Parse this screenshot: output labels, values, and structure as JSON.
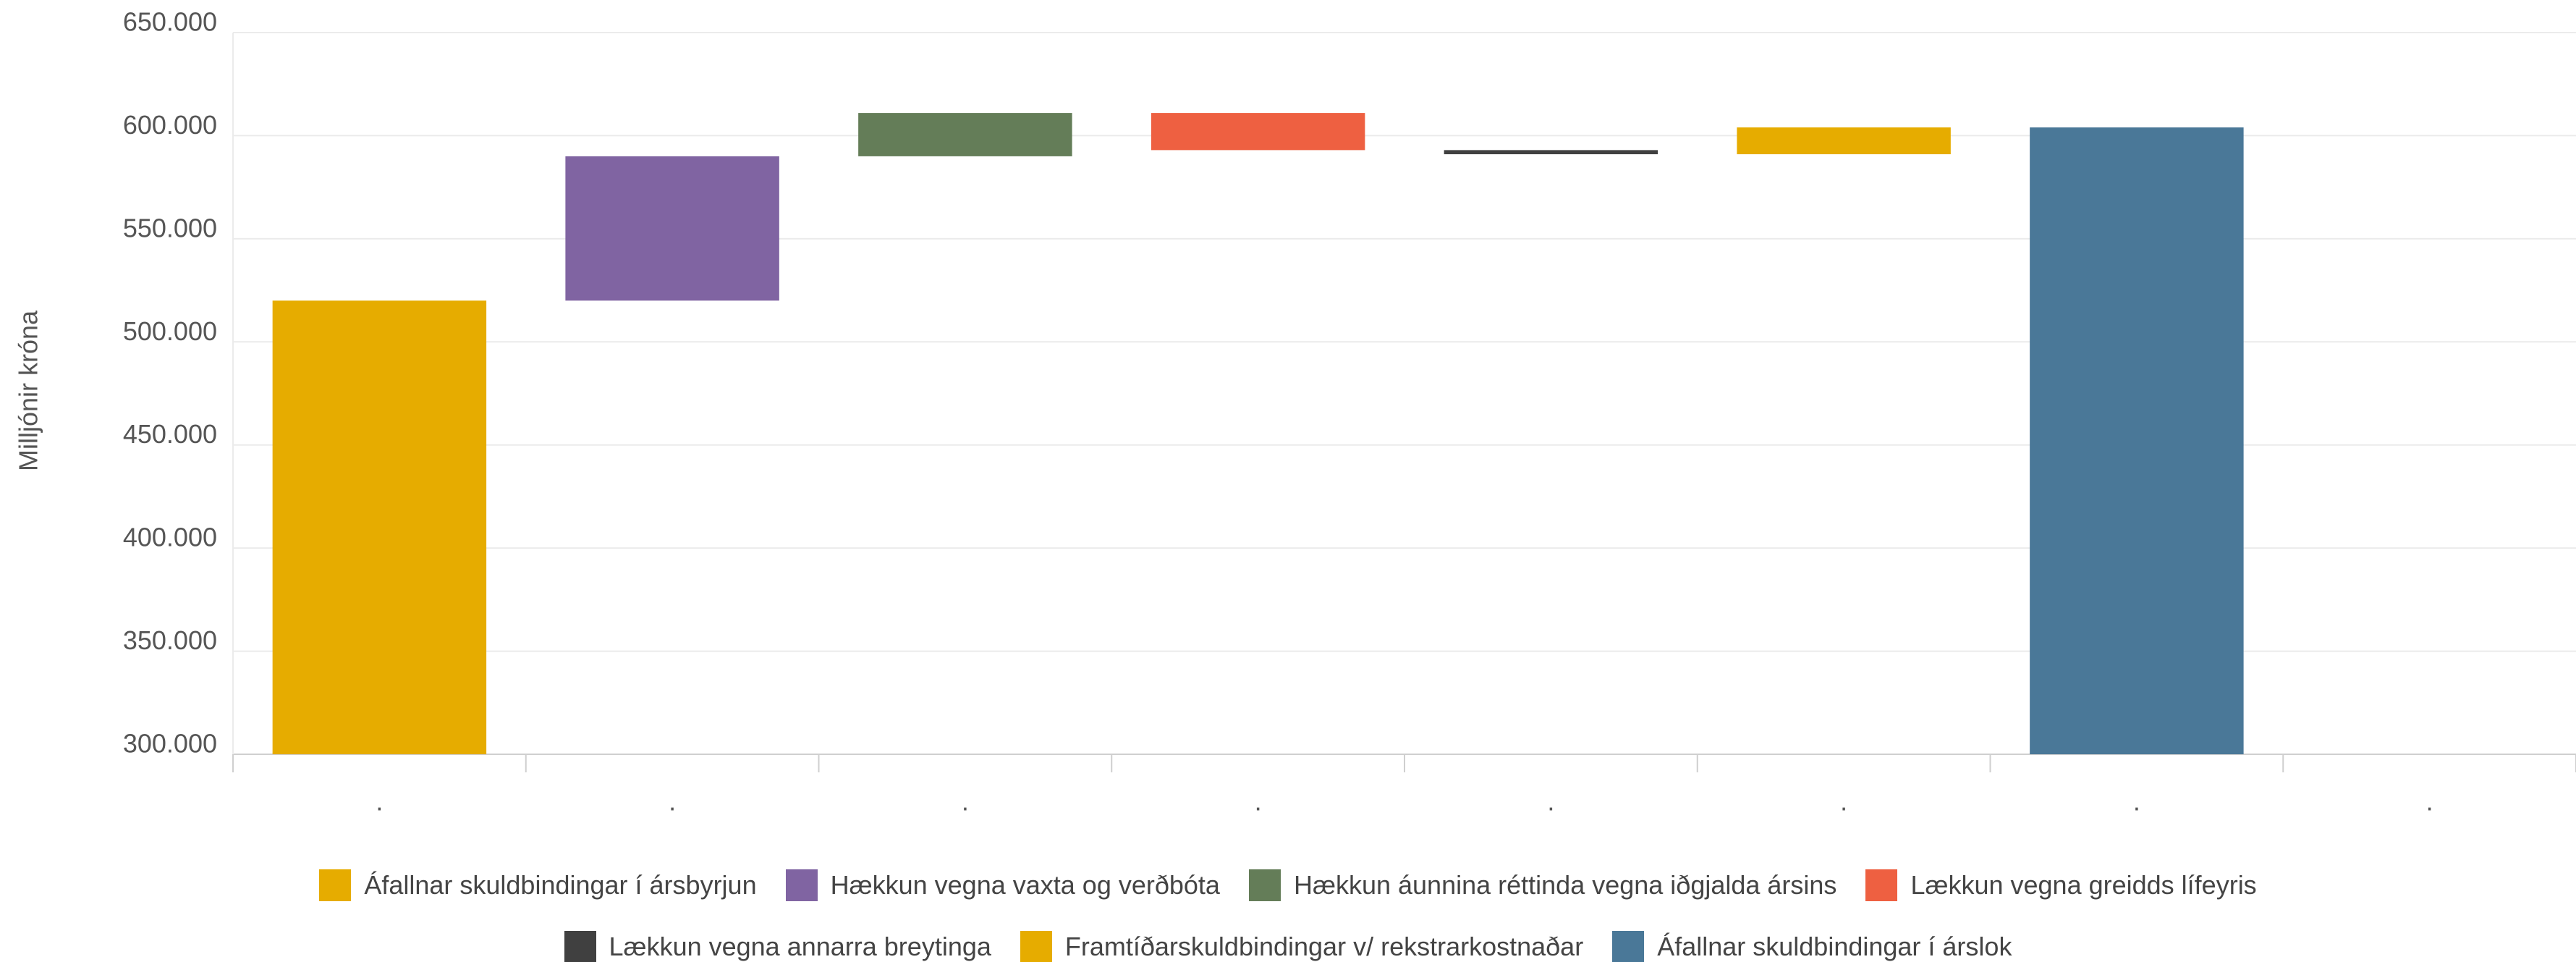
{
  "chart_data": {
    "type": "waterfall",
    "y_label": "Milljónir króna",
    "categories": [
      ".",
      ".",
      ".",
      ".",
      ".",
      ".",
      ".",
      "."
    ],
    "values": [
      520000,
      70000,
      21000,
      -18000,
      -2000,
      13000,
      604000,
      null
    ],
    "is_total": [
      true,
      false,
      false,
      false,
      false,
      false,
      true,
      false
    ],
    "series": [
      {
        "name": "Áfallnar skuldbindingar í ársbyrjun",
        "color": "#e6ac00"
      },
      {
        "name": "Hækkun vegna vaxta og verðbóta",
        "color": "#8064a2"
      },
      {
        "name": "Hækkun áunnina réttinda vegna iðgjalda ársins",
        "color": "#647d58"
      },
      {
        "name": "Lækkun vegna greidds lífeyris",
        "color": "#ee6041"
      },
      {
        "name": "Lækkun vegna annarra breytinga",
        "color": "#404040"
      },
      {
        "name": "Framtíðarskuldbindingar v/ rekstrarkostnaðar",
        "color": "#e6ac00"
      },
      {
        "name": "Áfallnar skuldbindingar í árslok",
        "color": "#4a7898"
      }
    ],
    "ylim": [
      300000,
      650000
    ],
    "yticks": [
      {
        "value": 300000,
        "label": "300.000"
      },
      {
        "value": 350000,
        "label": "350.000"
      },
      {
        "value": 400000,
        "label": "400.000"
      },
      {
        "value": 450000,
        "label": "450.000"
      },
      {
        "value": 500000,
        "label": "500.000"
      },
      {
        "value": 550000,
        "label": "550.000"
      },
      {
        "value": 600000,
        "label": "600.000"
      },
      {
        "value": 650000,
        "label": "650.000"
      }
    ],
    "grid": true
  }
}
